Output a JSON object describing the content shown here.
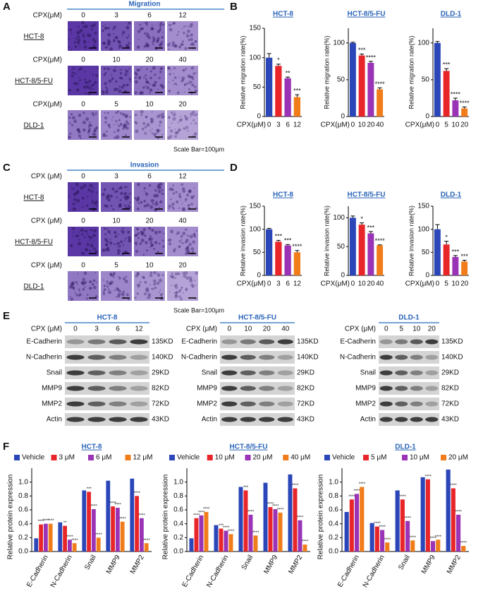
{
  "panel_labels": [
    "A",
    "B",
    "C",
    "D",
    "E",
    "F"
  ],
  "panel_a": {
    "title": "Migration",
    "scale_bar": "Scale Bar=100μm",
    "rows": [
      {
        "dose_label": "CPX(μM)",
        "doses": [
          "0",
          "3",
          "6",
          "12"
        ],
        "cell_line": "HCT-8"
      },
      {
        "dose_label": "CPX(μM)",
        "doses": [
          "0",
          "10",
          "20",
          "40"
        ],
        "cell_line": "HCT-8/5-FU"
      },
      {
        "dose_label": "CPX(μM)",
        "doses": [
          "0",
          "5",
          "10",
          "20"
        ],
        "cell_line": "DLD-1"
      }
    ]
  },
  "panel_c": {
    "title": "Invasion",
    "scale_bar": "Scale Bar=100μm",
    "rows": [
      {
        "dose_label": "CPX (μM)",
        "doses": [
          "0",
          "3",
          "6",
          "12"
        ],
        "cell_line": "HCT-8"
      },
      {
        "dose_label": "CPX (μM)",
        "doses": [
          "0",
          "10",
          "20",
          "40"
        ],
        "cell_line": "HCT-8/5-FU"
      },
      {
        "dose_label": "CPX (μM)",
        "doses": [
          "0",
          "5",
          "10",
          "20"
        ],
        "cell_line": "DLD-1"
      }
    ]
  },
  "panel_e": {
    "blots": [
      {
        "title": "HCT-8",
        "dose_label": "CPX (μM)",
        "doses": [
          "0",
          "3",
          "6",
          "12"
        ],
        "proteins": [
          "E-Cadherin",
          "N-Cadherin",
          "Snail",
          "MMP9",
          "MMP2",
          "Actin"
        ],
        "sizes": [
          "135KD",
          "140KD",
          "29KD",
          "82KD",
          "72KD",
          "43KD"
        ]
      },
      {
        "title": "HCT-8/5-FU",
        "dose_label": "CPX (μM)",
        "doses": [
          "0",
          "10",
          "20",
          "40"
        ],
        "proteins": [
          "E-Cadherin",
          "N-Cadherin",
          "Snail",
          "MMP9",
          "MMP2",
          "Actin"
        ],
        "sizes": [
          "135KD",
          "140KD",
          "29KD",
          "82KD",
          "72KD",
          "43KD"
        ]
      },
      {
        "title": "DLD-1",
        "dose_label": "CPX (μM)",
        "doses": [
          "0",
          "5",
          "10",
          "20"
        ],
        "proteins": [
          "E-Cadherin",
          "N-Cadherin",
          "Snail",
          "MMP9",
          "MMP2",
          "Actin"
        ],
        "sizes": [
          "135KD",
          "140KD",
          "29KD",
          "82KD",
          "72KD",
          "43KD"
        ]
      }
    ]
  },
  "chart_data": [
    {
      "type": "bar",
      "title": "HCT-8",
      "xlabel": "CPX(μM)",
      "ylabel": "Relative migration rate(%)",
      "categories": [
        "0",
        "3",
        "6",
        "12"
      ],
      "values": [
        100,
        86,
        65,
        33
      ],
      "errors": [
        7,
        3,
        2,
        4
      ],
      "annotations": [
        null,
        "*",
        "**",
        "***"
      ],
      "colors": [
        "#2a46b8",
        "#e8262a",
        "#9a33b5",
        "#f07d1a"
      ],
      "ylim": [
        0,
        150
      ],
      "yticks": [
        0,
        50,
        100,
        150
      ]
    },
    {
      "type": "bar",
      "title": "HCT-8/5-FU",
      "xlabel": "CPX(μM)",
      "ylabel": "Relative migration rate(%)",
      "categories": [
        "0",
        "10",
        "20",
        "40"
      ],
      "values": [
        100,
        83,
        73,
        37
      ],
      "errors": [
        1,
        2,
        2,
        2
      ],
      "annotations": [
        null,
        "***",
        "****",
        "****"
      ],
      "colors": [
        "#2a46b8",
        "#e8262a",
        "#9a33b5",
        "#f07d1a"
      ],
      "ylim": [
        0,
        120
      ],
      "yticks": [
        0,
        50,
        100
      ]
    },
    {
      "type": "bar",
      "title": "DLD-1",
      "xlabel": "CPX(μM)",
      "ylabel": "Relative migration rate(%)",
      "categories": [
        "0",
        "5",
        "10",
        "20"
      ],
      "values": [
        100,
        62,
        22,
        11
      ],
      "errors": [
        2,
        3,
        3,
        2
      ],
      "annotations": [
        null,
        "***",
        "****",
        "****"
      ],
      "colors": [
        "#2a46b8",
        "#e8262a",
        "#9a33b5",
        "#f07d1a"
      ],
      "ylim": [
        0,
        120
      ],
      "yticks": [
        0,
        50,
        100
      ]
    },
    {
      "type": "bar",
      "title": "HCT-8",
      "xlabel": "CPX(μM)",
      "ylabel": "Relative invasion rate(%)",
      "categories": [
        "0",
        "3",
        "6",
        "12"
      ],
      "values": [
        100,
        73,
        65,
        50
      ],
      "errors": [
        2,
        3,
        2,
        4
      ],
      "annotations": [
        null,
        "***",
        "***",
        "****"
      ],
      "colors": [
        "#2a46b8",
        "#e8262a",
        "#9a33b5",
        "#f07d1a"
      ],
      "ylim": [
        0,
        150
      ],
      "yticks": [
        0,
        50,
        100,
        150
      ]
    },
    {
      "type": "bar",
      "title": "HCT-8/5-FU",
      "xlabel": "CPX(μM)",
      "ylabel": "Relative invasion rate(%)",
      "categories": [
        "0",
        "10",
        "20",
        "40"
      ],
      "values": [
        100,
        88,
        73,
        52
      ],
      "errors": [
        3,
        3,
        3,
        1
      ],
      "annotations": [
        null,
        "*",
        "***",
        "****"
      ],
      "colors": [
        "#2a46b8",
        "#e8262a",
        "#9a33b5",
        "#f07d1a"
      ],
      "ylim": [
        0,
        120
      ],
      "yticks": [
        0,
        50,
        100
      ]
    },
    {
      "type": "bar",
      "title": "DLD-1",
      "xlabel": "CPX(μM)",
      "ylabel": "Relative invasion rate(%)",
      "categories": [
        "0",
        "5",
        "10",
        "20"
      ],
      "values": [
        100,
        67,
        40,
        30
      ],
      "errors": [
        10,
        7,
        3,
        3
      ],
      "annotations": [
        null,
        "*",
        "***",
        "***"
      ],
      "colors": [
        "#2a46b8",
        "#e8262a",
        "#9a33b5",
        "#f07d1a"
      ],
      "ylim": [
        0,
        150
      ],
      "yticks": [
        0,
        50,
        100,
        150
      ]
    },
    {
      "type": "grouped_bar",
      "title": "HCT-8",
      "ylabel": "Relative protein expression",
      "categories": [
        "E-Cadherin",
        "N-Cadherin",
        "Snail",
        "MMP9",
        "MMP2"
      ],
      "series": [
        {
          "name": "Vehicle",
          "color": "#2a46b8",
          "values": [
            0.19,
            0.42,
            0.88,
            1.02,
            1.05
          ],
          "annotations": [
            null,
            null,
            null,
            null,
            null
          ]
        },
        {
          "name": "3 μM",
          "color": "#e8262a",
          "values": [
            0.39,
            0.37,
            0.86,
            0.65,
            0.8
          ],
          "annotations": [
            "****",
            "**",
            "***",
            "****",
            "****"
          ]
        },
        {
          "name": "6 μM",
          "color": "#9a33b5",
          "values": [
            0.4,
            0.17,
            0.61,
            0.63,
            0.48
          ],
          "annotations": [
            "****",
            "****",
            "****",
            "****",
            "****"
          ]
        },
        {
          "name": "12 μM",
          "color": "#f07d1a",
          "values": [
            0.4,
            0.12,
            0.2,
            0.43,
            0.12
          ],
          "annotations": [
            "****",
            "****",
            "****",
            "****",
            "****"
          ]
        }
      ],
      "ylim": [
        0,
        1.2
      ],
      "yticks": [
        {
          "value": 0,
          "label": "0.0"
        },
        0.2,
        0.4,
        0.6,
        0.8,
        {
          "value": 1,
          "label": "1.0"
        }
      ]
    },
    {
      "type": "grouped_bar",
      "title": "HCT-8/5-FU",
      "ylabel": "Relative protein expression",
      "categories": [
        "E-Cadherin",
        "N-Cadherin",
        "Snail",
        "MMP9",
        "MMP2"
      ],
      "series": [
        {
          "name": "Vehicle",
          "color": "#2a46b8",
          "values": [
            0.19,
            0.38,
            0.93,
            0.99,
            1.11
          ],
          "annotations": [
            null,
            null,
            null,
            null,
            null
          ]
        },
        {
          "name": "10 μM",
          "color": "#e8262a",
          "values": [
            0.48,
            0.33,
            0.88,
            0.64,
            0.91
          ],
          "annotations": [
            "****",
            "***",
            "***",
            "****",
            "****"
          ]
        },
        {
          "name": "20 μM",
          "color": "#9a33b5",
          "values": [
            0.52,
            0.3,
            0.53,
            0.61,
            0.45
          ],
          "annotations": [
            "****",
            "****",
            "****",
            "****",
            "****"
          ]
        },
        {
          "name": "40 μM",
          "color": "#f07d1a",
          "values": [
            0.57,
            0.25,
            0.23,
            0.56,
            0.1
          ],
          "annotations": [
            "****",
            "****",
            "****",
            "****",
            "****"
          ]
        }
      ],
      "ylim": [
        0,
        1.2
      ],
      "yticks": [
        {
          "value": 0,
          "label": "0.0"
        },
        0.2,
        0.4,
        0.6,
        0.8,
        {
          "value": 1,
          "label": "1.0"
        }
      ]
    },
    {
      "type": "grouped_bar",
      "title": "DLD-1",
      "ylabel": "Relative protein expression",
      "categories": [
        "E-Cadherin",
        "N-Cadherin",
        "Snail",
        "MMP9",
        "MMP2"
      ],
      "series": [
        {
          "name": "Vehicle",
          "color": "#2a46b8",
          "values": [
            0.57,
            0.41,
            0.88,
            1.07,
            1.18
          ],
          "annotations": [
            null,
            null,
            null,
            null,
            null
          ]
        },
        {
          "name": "5 μM",
          "color": "#e8262a",
          "values": [
            0.75,
            0.36,
            0.75,
            1.04,
            0.91
          ],
          "annotations": [
            "****",
            "****",
            "****",
            "****",
            "****"
          ]
        },
        {
          "name": "10 μM",
          "color": "#9a33b5",
          "values": [
            0.83,
            0.31,
            0.44,
            0.15,
            0.53
          ],
          "annotations": [
            "****",
            "****",
            "****",
            "****",
            "****"
          ]
        },
        {
          "name": "20 μM",
          "color": "#f07d1a",
          "values": [
            0.93,
            0.13,
            0.16,
            0.17,
            0.08
          ],
          "annotations": [
            "****",
            "****",
            "****",
            "****",
            "****"
          ]
        }
      ],
      "ylim": [
        0,
        1.2
      ],
      "yticks": [
        {
          "value": 0,
          "label": "0.0"
        },
        0.2,
        0.4,
        0.6,
        0.8,
        {
          "value": 1,
          "label": "1.0"
        }
      ]
    }
  ]
}
